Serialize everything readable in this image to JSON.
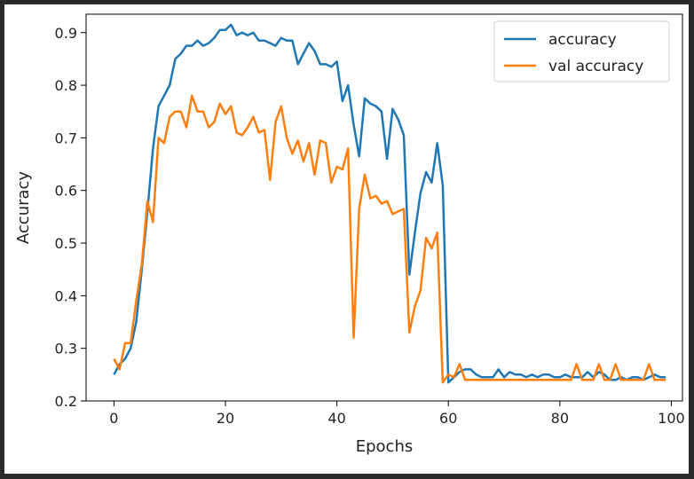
{
  "chart_data": {
    "type": "line",
    "xlabel": "Epochs",
    "ylabel": "Accuracy",
    "xlim": [
      -5,
      102
    ],
    "ylim": [
      0.2,
      0.935
    ],
    "xticks": [
      0,
      20,
      40,
      60,
      80,
      100
    ],
    "yticks": [
      0.2,
      0.3,
      0.4,
      0.5,
      0.6,
      0.7,
      0.8,
      0.9
    ],
    "grid": false,
    "legend_position": "top-right",
    "series": [
      {
        "name": "accuracy",
        "color": "#1f77b4",
        "x": [
          0,
          1,
          2,
          3,
          4,
          5,
          6,
          7,
          8,
          9,
          10,
          11,
          12,
          13,
          14,
          15,
          16,
          17,
          18,
          19,
          20,
          21,
          22,
          23,
          24,
          25,
          26,
          27,
          28,
          29,
          30,
          31,
          32,
          33,
          34,
          35,
          36,
          37,
          38,
          39,
          40,
          41,
          42,
          43,
          44,
          45,
          46,
          47,
          48,
          49,
          50,
          51,
          52,
          53,
          54,
          55,
          56,
          57,
          58,
          59,
          60,
          61,
          62,
          63,
          64,
          65,
          66,
          67,
          68,
          69,
          70,
          71,
          72,
          73,
          74,
          75,
          76,
          77,
          78,
          79,
          80,
          81,
          82,
          83,
          84,
          85,
          86,
          87,
          88,
          89,
          90,
          91,
          92,
          93,
          94,
          95,
          96,
          97,
          98,
          99
        ],
        "values": [
          0.25,
          0.27,
          0.28,
          0.3,
          0.35,
          0.45,
          0.56,
          0.68,
          0.76,
          0.78,
          0.8,
          0.85,
          0.86,
          0.875,
          0.875,
          0.885,
          0.875,
          0.88,
          0.89,
          0.905,
          0.905,
          0.915,
          0.895,
          0.9,
          0.895,
          0.9,
          0.885,
          0.885,
          0.88,
          0.875,
          0.89,
          0.885,
          0.885,
          0.84,
          0.86,
          0.88,
          0.865,
          0.84,
          0.84,
          0.835,
          0.845,
          0.77,
          0.8,
          0.725,
          0.665,
          0.775,
          0.765,
          0.76,
          0.75,
          0.66,
          0.755,
          0.735,
          0.705,
          0.44,
          0.52,
          0.595,
          0.635,
          0.615,
          0.69,
          0.61,
          0.235,
          0.245,
          0.255,
          0.26,
          0.26,
          0.25,
          0.245,
          0.245,
          0.245,
          0.26,
          0.245,
          0.255,
          0.25,
          0.25,
          0.245,
          0.25,
          0.245,
          0.25,
          0.25,
          0.245,
          0.245,
          0.25,
          0.245,
          0.245,
          0.245,
          0.255,
          0.245,
          0.255,
          0.25,
          0.24,
          0.24,
          0.245,
          0.24,
          0.245,
          0.245,
          0.24,
          0.245,
          0.25,
          0.245,
          0.245
        ]
      },
      {
        "name": "val accuracy",
        "color": "#ff7f0e",
        "x": [
          0,
          1,
          2,
          3,
          4,
          5,
          6,
          7,
          8,
          9,
          10,
          11,
          12,
          13,
          14,
          15,
          16,
          17,
          18,
          19,
          20,
          21,
          22,
          23,
          24,
          25,
          26,
          27,
          28,
          29,
          30,
          31,
          32,
          33,
          34,
          35,
          36,
          37,
          38,
          39,
          40,
          41,
          42,
          43,
          44,
          45,
          46,
          47,
          48,
          49,
          50,
          51,
          52,
          53,
          54,
          55,
          56,
          57,
          58,
          59,
          60,
          61,
          62,
          63,
          64,
          65,
          66,
          67,
          68,
          69,
          70,
          71,
          72,
          73,
          74,
          75,
          76,
          77,
          78,
          79,
          80,
          81,
          82,
          83,
          84,
          85,
          86,
          87,
          88,
          89,
          90,
          91,
          92,
          93,
          94,
          95,
          96,
          97,
          98,
          99
        ],
        "values": [
          0.28,
          0.26,
          0.31,
          0.31,
          0.39,
          0.46,
          0.58,
          0.54,
          0.7,
          0.69,
          0.74,
          0.75,
          0.75,
          0.72,
          0.78,
          0.75,
          0.75,
          0.72,
          0.73,
          0.765,
          0.745,
          0.76,
          0.71,
          0.705,
          0.72,
          0.74,
          0.71,
          0.715,
          0.62,
          0.73,
          0.76,
          0.7,
          0.67,
          0.695,
          0.655,
          0.69,
          0.63,
          0.695,
          0.69,
          0.615,
          0.645,
          0.64,
          0.68,
          0.32,
          0.565,
          0.63,
          0.585,
          0.59,
          0.575,
          0.58,
          0.555,
          0.56,
          0.565,
          0.33,
          0.38,
          0.41,
          0.51,
          0.49,
          0.52,
          0.235,
          0.25,
          0.245,
          0.27,
          0.24,
          0.24,
          0.24,
          0.24,
          0.24,
          0.24,
          0.24,
          0.24,
          0.24,
          0.24,
          0.24,
          0.24,
          0.24,
          0.24,
          0.24,
          0.24,
          0.24,
          0.24,
          0.24,
          0.24,
          0.27,
          0.24,
          0.24,
          0.24,
          0.27,
          0.24,
          0.24,
          0.27,
          0.24,
          0.24,
          0.24,
          0.24,
          0.24,
          0.27,
          0.24,
          0.24,
          0.24
        ]
      }
    ]
  }
}
